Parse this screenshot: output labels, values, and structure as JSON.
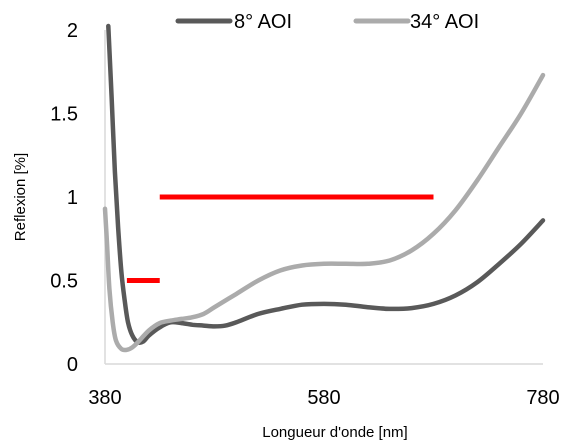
{
  "chart_data": {
    "type": "line",
    "xlabel": "Longueur d'onde [nm]",
    "ylabel": "Reflexion [%]",
    "xlim": [
      380,
      780
    ],
    "ylim": [
      0,
      2
    ],
    "x_ticks": [
      "380",
      "580",
      "780"
    ],
    "y_ticks": [
      "0",
      "0.5",
      "1",
      "1.5",
      "2"
    ],
    "grid": false,
    "legend_position": "top",
    "series": [
      {
        "name": "8° AOI",
        "color": "#595959",
        "points": [
          [
            383,
            2.05
          ],
          [
            386,
            1.6
          ],
          [
            389,
            1.15
          ],
          [
            392,
            0.82
          ],
          [
            395,
            0.55
          ],
          [
            398,
            0.38
          ],
          [
            401,
            0.25
          ],
          [
            405,
            0.17
          ],
          [
            410,
            0.13
          ],
          [
            415,
            0.135
          ],
          [
            420,
            0.17
          ],
          [
            430,
            0.22
          ],
          [
            440,
            0.25
          ],
          [
            450,
            0.245
          ],
          [
            460,
            0.235
          ],
          [
            470,
            0.23
          ],
          [
            480,
            0.225
          ],
          [
            490,
            0.23
          ],
          [
            500,
            0.25
          ],
          [
            520,
            0.3
          ],
          [
            540,
            0.33
          ],
          [
            560,
            0.355
          ],
          [
            580,
            0.36
          ],
          [
            600,
            0.355
          ],
          [
            620,
            0.34
          ],
          [
            640,
            0.33
          ],
          [
            660,
            0.335
          ],
          [
            680,
            0.36
          ],
          [
            700,
            0.41
          ],
          [
            720,
            0.49
          ],
          [
            740,
            0.6
          ],
          [
            760,
            0.72
          ],
          [
            780,
            0.86
          ]
        ]
      },
      {
        "name": "34° AOI",
        "color": "#ababab",
        "points": [
          [
            380,
            0.93
          ],
          [
            382,
            0.7
          ],
          [
            384,
            0.45
          ],
          [
            387,
            0.25
          ],
          [
            390,
            0.14
          ],
          [
            395,
            0.09
          ],
          [
            400,
            0.085
          ],
          [
            405,
            0.1
          ],
          [
            410,
            0.13
          ],
          [
            420,
            0.2
          ],
          [
            430,
            0.245
          ],
          [
            440,
            0.26
          ],
          [
            450,
            0.27
          ],
          [
            460,
            0.28
          ],
          [
            470,
            0.3
          ],
          [
            480,
            0.34
          ],
          [
            500,
            0.42
          ],
          [
            520,
            0.5
          ],
          [
            540,
            0.56
          ],
          [
            560,
            0.59
          ],
          [
            580,
            0.6
          ],
          [
            600,
            0.6
          ],
          [
            620,
            0.6
          ],
          [
            640,
            0.62
          ],
          [
            660,
            0.68
          ],
          [
            680,
            0.78
          ],
          [
            700,
            0.92
          ],
          [
            720,
            1.1
          ],
          [
            740,
            1.3
          ],
          [
            760,
            1.5
          ],
          [
            780,
            1.73
          ]
        ]
      }
    ],
    "annotations": [
      {
        "type": "segment",
        "color": "#ff0000",
        "x": [
          400,
          430
        ],
        "y": 0.5
      },
      {
        "type": "segment",
        "color": "#ff0000",
        "x": [
          430,
          680
        ],
        "y": 1.0
      }
    ]
  }
}
